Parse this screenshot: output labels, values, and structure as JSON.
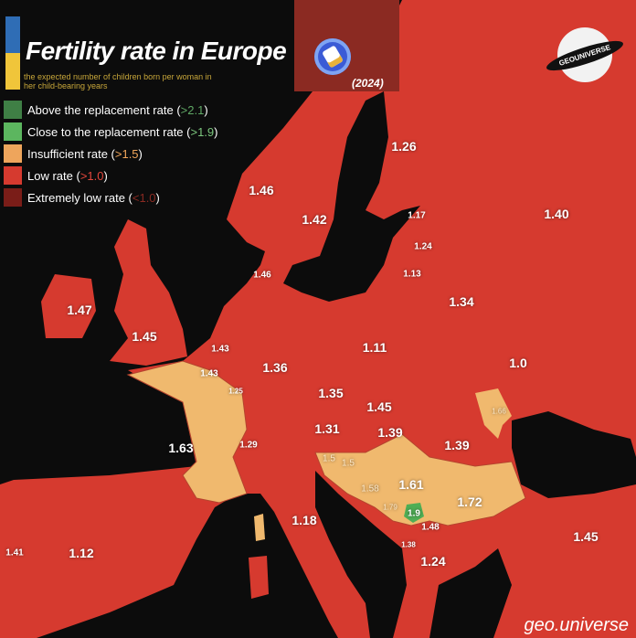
{
  "header": {
    "title": "Fertility rate in Europe",
    "subtitle": "the expected number of children born per woman in her child-bearing years",
    "year": "(2024)"
  },
  "legend": [
    {
      "label": "Above the replacement rate (",
      "threshold": ">2.1",
      "close": ")",
      "color": "#3f7f45",
      "threshold_color": "#5fa865"
    },
    {
      "label": "Close to the replacement rate (",
      "threshold": ">1.9",
      "close": ")",
      "color": "#5cb65f",
      "threshold_color": "#7cc77e"
    },
    {
      "label": "Insufficient rate (",
      "threshold": ">1.5",
      "close": ")",
      "color": "#eea55c",
      "threshold_color": "#f0a65a"
    },
    {
      "label": "Low rate (",
      "threshold": ">1.0",
      "close": ")",
      "color": "#d63a2f",
      "threshold_color": "#e4473c"
    },
    {
      "label": "Extremely low rate (",
      "threshold": "<1.0",
      "close": ")",
      "color": "#7a1d18",
      "threshold_color": "#8b2a22"
    }
  ],
  "colors": {
    "sea": "#0c0c0c",
    "low": "#d63a2f",
    "insufficient": "#f0b96e",
    "close": "#4fae55"
  },
  "logo": {
    "text": "GEOUNIVERSE"
  },
  "watermark": "geo.universe",
  "map_labels": [
    "1.26",
    "1.46",
    "1.42",
    "1.17",
    "1.40",
    "1.24",
    "1.46",
    "1.13",
    "1.34",
    "1.47",
    "1.45",
    "1.43",
    "1.11",
    "1.0",
    "1.43",
    "1.36",
    "1.25",
    "1.35",
    "1.45",
    "1.66",
    "1.31",
    "1.39",
    "1.63",
    "1.29",
    "1.39",
    "1.5",
    "1.5",
    "1.61",
    "1.58",
    "1.72",
    "1.79",
    "1.9",
    "1.18",
    "1.48",
    "1.45",
    "1.38",
    "1.41",
    "1.12",
    "1.24"
  ]
}
